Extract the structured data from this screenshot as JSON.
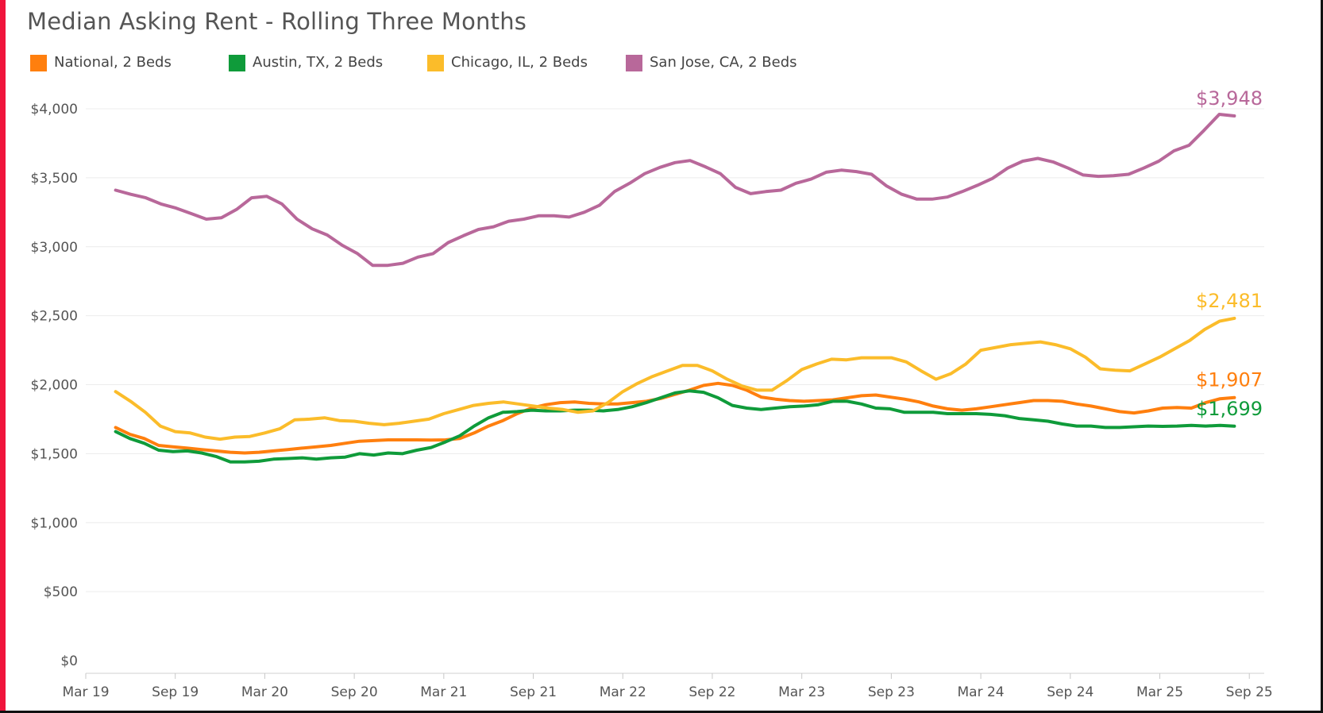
{
  "chart_data": {
    "type": "line",
    "title": "Median Asking Rent - Rolling Three Months",
    "xlabel": "",
    "ylabel": "",
    "ylim": [
      0,
      4000
    ],
    "y_ticks": [
      0,
      500,
      1000,
      1500,
      2000,
      2500,
      3000,
      3500,
      4000
    ],
    "y_tick_labels": [
      "$0",
      "$500",
      "$1,000",
      "$1,500",
      "$2,000",
      "$2,500",
      "$3,000",
      "$3,500",
      "$4,000"
    ],
    "x_tick_labels": [
      "Mar 19",
      "Sep 19",
      "Mar 20",
      "Sep 20",
      "Mar 21",
      "Sep 21",
      "Mar 22",
      "Sep 22",
      "Mar 23",
      "Sep 23",
      "Mar 24",
      "Sep 24",
      "Mar 25",
      "Sep 25"
    ],
    "x_start": "2019-05",
    "x_end": "2025-08",
    "legend_position": "top-left",
    "grid": true,
    "series": [
      {
        "name": "National, 2 Beds",
        "color": "#ff7f0e",
        "end_label": "$1,907",
        "values": [
          1690,
          1640,
          1610,
          1560,
          1550,
          1540,
          1530,
          1520,
          1510,
          1505,
          1510,
          1520,
          1530,
          1540,
          1550,
          1560,
          1575,
          1590,
          1595,
          1600,
          1600,
          1600,
          1598,
          1600,
          1610,
          1650,
          1700,
          1740,
          1790,
          1830,
          1855,
          1870,
          1875,
          1865,
          1860,
          1860,
          1870,
          1880,
          1900,
          1930,
          1960,
          1995,
          2010,
          1995,
          1960,
          1910,
          1895,
          1885,
          1880,
          1885,
          1890,
          1905,
          1920,
          1925,
          1910,
          1895,
          1875,
          1845,
          1825,
          1815,
          1825,
          1840,
          1855,
          1870,
          1885,
          1885,
          1880,
          1860,
          1845,
          1825,
          1805,
          1795,
          1810,
          1830,
          1835,
          1830,
          1870,
          1898,
          1907
        ]
      },
      {
        "name": "Austin, TX, 2 Beds",
        "color": "#0f9b3a",
        "end_label": "$1,699",
        "values": [
          1660,
          1610,
          1575,
          1525,
          1515,
          1520,
          1505,
          1480,
          1440,
          1440,
          1445,
          1460,
          1465,
          1470,
          1460,
          1470,
          1475,
          1500,
          1490,
          1505,
          1500,
          1525,
          1545,
          1585,
          1630,
          1700,
          1760,
          1800,
          1805,
          1815,
          1810,
          1810,
          1815,
          1815,
          1810,
          1820,
          1840,
          1870,
          1905,
          1940,
          1955,
          1945,
          1905,
          1850,
          1830,
          1820,
          1830,
          1840,
          1845,
          1855,
          1880,
          1880,
          1860,
          1830,
          1825,
          1800,
          1800,
          1800,
          1790,
          1790,
          1790,
          1785,
          1775,
          1755,
          1745,
          1735,
          1715,
          1700,
          1700,
          1690,
          1690,
          1695,
          1700,
          1698,
          1700,
          1705,
          1700,
          1705,
          1699
        ]
      },
      {
        "name": "Chicago, IL, 2 Beds",
        "color": "#fbbc2a",
        "end_label": "$2,481",
        "values": [
          1950,
          1880,
          1800,
          1700,
          1660,
          1650,
          1620,
          1605,
          1620,
          1625,
          1650,
          1680,
          1745,
          1750,
          1760,
          1740,
          1735,
          1720,
          1710,
          1720,
          1735,
          1750,
          1790,
          1820,
          1850,
          1865,
          1875,
          1860,
          1845,
          1830,
          1820,
          1800,
          1810,
          1870,
          1950,
          2010,
          2060,
          2100,
          2140,
          2140,
          2100,
          2040,
          1990,
          1960,
          1960,
          2030,
          2110,
          2150,
          2185,
          2180,
          2195,
          2195,
          2195,
          2165,
          2100,
          2040,
          2080,
          2150,
          2250,
          2270,
          2290,
          2300,
          2310,
          2290,
          2260,
          2200,
          2115,
          2105,
          2100,
          2150,
          2200,
          2260,
          2320,
          2400,
          2460,
          2481
        ]
      },
      {
        "name": "San Jose, CA, 2 Beds",
        "color": "#b8689a",
        "end_label": "$3,948",
        "values": [
          3410,
          3380,
          3355,
          3310,
          3280,
          3240,
          3200,
          3210,
          3270,
          3355,
          3365,
          3310,
          3200,
          3130,
          3085,
          3010,
          2950,
          2865,
          2865,
          2880,
          2925,
          2950,
          3030,
          3080,
          3125,
          3145,
          3185,
          3200,
          3225,
          3225,
          3215,
          3250,
          3300,
          3400,
          3460,
          3530,
          3575,
          3610,
          3625,
          3580,
          3530,
          3430,
          3385,
          3400,
          3410,
          3460,
          3490,
          3540,
          3555,
          3545,
          3525,
          3440,
          3380,
          3345,
          3345,
          3360,
          3400,
          3445,
          3495,
          3570,
          3620,
          3640,
          3615,
          3570,
          3520,
          3510,
          3515,
          3525,
          3570,
          3620,
          3695,
          3735,
          3845,
          3960,
          3948
        ]
      }
    ]
  }
}
